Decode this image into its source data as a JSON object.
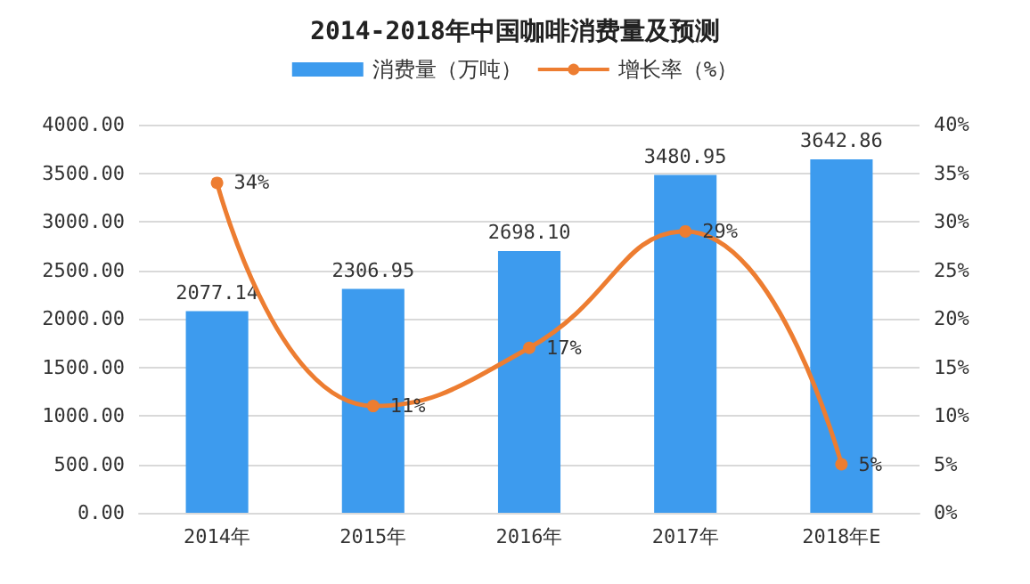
{
  "chart_data": {
    "type": "bar",
    "title": "2014-2018年中国咖啡消费量及预测",
    "categories": [
      "2014年",
      "2015年",
      "2016年",
      "2017年",
      "2018年E"
    ],
    "series": [
      {
        "name": "消费量（万吨）",
        "color": "#3d9bee",
        "values": [
          2077.14,
          2306.95,
          2698.1,
          3480.95,
          3642.86
        ],
        "value_labels": [
          "2077.14",
          "2306.95",
          "2698.10",
          "3480.95",
          "3642.86"
        ]
      },
      {
        "name": "增长率（%）",
        "type": "line",
        "axis": "y2",
        "color": "#ed7d31",
        "values": [
          34,
          11,
          17,
          29,
          5
        ],
        "value_labels": [
          "34%",
          "11%",
          "17%",
          "29%",
          "5%"
        ]
      }
    ],
    "ylim": [
      0,
      4000
    ],
    "yticks": [
      {
        "value": 0,
        "label": "0.00"
      },
      {
        "value": 500,
        "label": "500.00"
      },
      {
        "value": 1000,
        "label": "1000.00"
      },
      {
        "value": 1500,
        "label": "1500.00"
      },
      {
        "value": 2000,
        "label": "2000.00"
      },
      {
        "value": 2500,
        "label": "2500.00"
      },
      {
        "value": 3000,
        "label": "3000.00"
      },
      {
        "value": 3500,
        "label": "3500.00"
      },
      {
        "value": 4000,
        "label": "4000.00"
      }
    ],
    "y2lim": [
      0,
      40
    ],
    "y2ticks": [
      {
        "value": 0,
        "label": "0%"
      },
      {
        "value": 5,
        "label": "5%"
      },
      {
        "value": 10,
        "label": "10%"
      },
      {
        "value": 15,
        "label": "15%"
      },
      {
        "value": 20,
        "label": "20%"
      },
      {
        "value": 25,
        "label": "25%"
      },
      {
        "value": 30,
        "label": "30%"
      },
      {
        "value": 35,
        "label": "35%"
      },
      {
        "value": 40,
        "label": "40%"
      }
    ],
    "grid": "y",
    "legend": "top",
    "marker": "circle"
  }
}
